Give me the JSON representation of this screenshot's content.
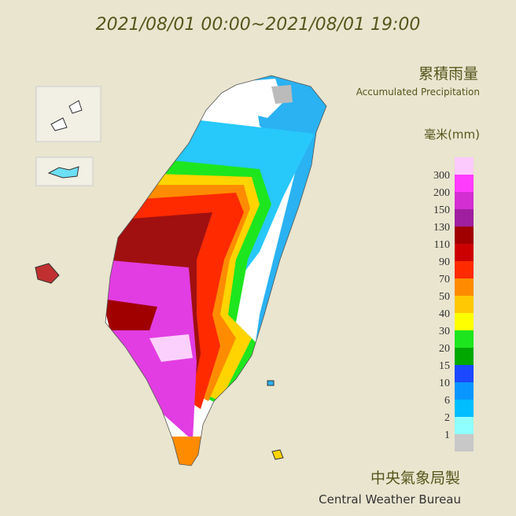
{
  "header": {
    "title": "2021/08/01 00:00~2021/08/01 19:00"
  },
  "legend": {
    "title": "累積雨量",
    "subtitle": "Accumulated Precipitation",
    "unit": "毫米(mm)",
    "labels": [
      300,
      200,
      150,
      130,
      110,
      90,
      70,
      50,
      40,
      30,
      20,
      15,
      10,
      6,
      2,
      1
    ],
    "colors": [
      "#fccafc",
      "#fe3cfe",
      "#d42fd4",
      "#a01fa0",
      "#a00000",
      "#cc0000",
      "#ff2a00",
      "#ff8c00",
      "#ffc800",
      "#ffff00",
      "#1ee61e",
      "#00a800",
      "#1c48ff",
      "#0a96ff",
      "#00beff",
      "#90ffff",
      "#c8c8c8"
    ]
  },
  "footer": {
    "agency": "中央氣象局製",
    "agency_en": "Central Weather Bureau"
  }
}
